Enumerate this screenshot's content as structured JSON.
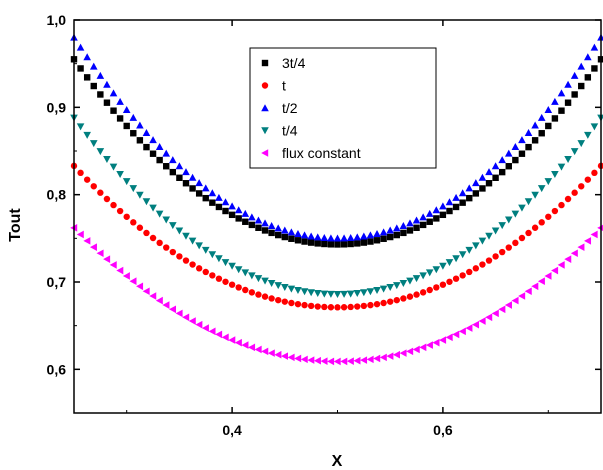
{
  "chart_data": {
    "type": "scatter",
    "xlabel": "X",
    "ylabel": "Tout",
    "xlim": [
      0.25,
      0.75
    ],
    "ylim": [
      0.55,
      1.0
    ],
    "x_ticks": [
      0.4,
      0.6
    ],
    "x_tick_labels": [
      "0,4",
      "0,6"
    ],
    "y_ticks": [
      0.6,
      0.7,
      0.8,
      0.9,
      1.0
    ],
    "y_tick_labels": [
      "0,6",
      "0,7",
      "0,8",
      "0,9",
      "1,0"
    ],
    "grid": false,
    "legend_position": "top-center",
    "x_range": {
      "start": 0.25,
      "end": 0.75,
      "count": 81
    },
    "series": [
      {
        "name": "3t/4",
        "marker": "square",
        "color": "#000000",
        "min": 0.743,
        "edge": 0.955
      },
      {
        "name": "t",
        "marker": "circle",
        "color": "#ff0000",
        "min": 0.671,
        "edge": 0.833
      },
      {
        "name": "t/2",
        "marker": "triangle-up",
        "color": "#0000ff",
        "min": 0.75,
        "edge": 0.98
      },
      {
        "name": "t/4",
        "marker": "triangle-down",
        "color": "#007f7f",
        "min": 0.686,
        "edge": 0.888
      },
      {
        "name": "flux constant",
        "marker": "triangle-left",
        "color": "#ff00ff",
        "min": 0.609,
        "edge": 0.762
      }
    ]
  }
}
